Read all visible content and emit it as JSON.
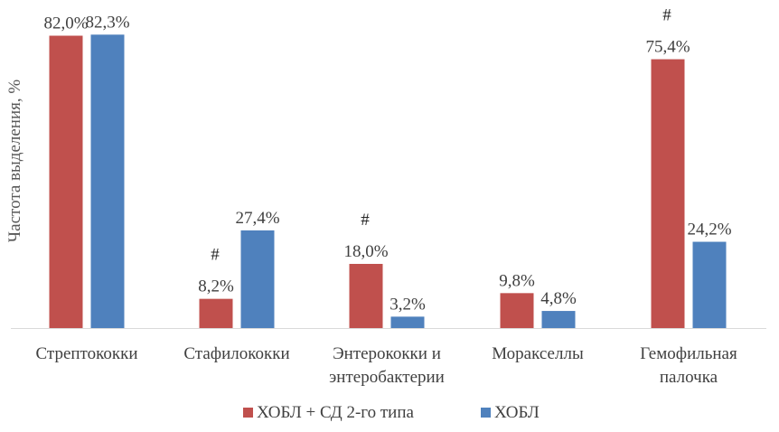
{
  "chart_data": {
    "type": "bar",
    "title": "",
    "xlabel": "",
    "ylabel": "Частота выделения, %",
    "ylim": [
      0,
      90
    ],
    "grid": false,
    "legend_position": "bottom",
    "categories": [
      [
        "Стрептококки"
      ],
      [
        "Стафилококки"
      ],
      [
        "Энтерококки и",
        "энтеробактерии"
      ],
      [
        "Моракселлы"
      ],
      [
        "Гемофильная",
        "палочка"
      ]
    ],
    "series": [
      {
        "name": "ХОБЛ + СД 2-го типа",
        "color": "#c0504d",
        "values": [
          82.0,
          8.2,
          18.0,
          9.8,
          75.4
        ],
        "labels": [
          "82,0%",
          "8,2%",
          "18,0%",
          "9,8%",
          "75,4%"
        ],
        "markers": [
          "",
          "#",
          "#",
          "",
          "#"
        ]
      },
      {
        "name": "ХОБЛ",
        "color": "#4f81bd",
        "values": [
          82.3,
          27.4,
          3.2,
          4.8,
          24.2
        ],
        "labels": [
          "82,3%",
          "27,4%",
          "3,2%",
          "4,8%",
          "24,2%"
        ],
        "markers": [
          "",
          "",
          "",
          "",
          ""
        ]
      }
    ]
  }
}
